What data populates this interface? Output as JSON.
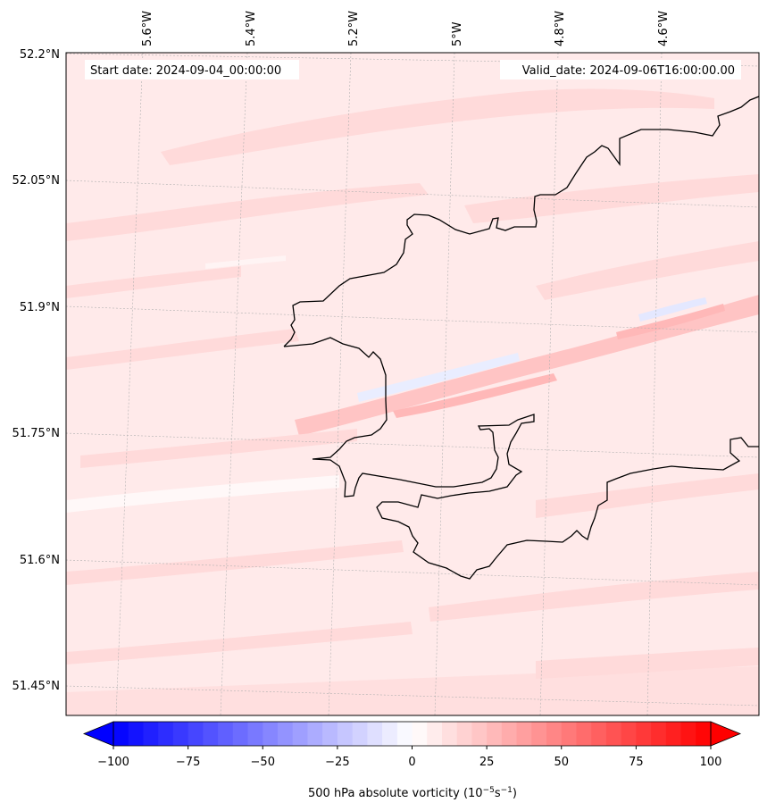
{
  "header": {
    "start_date": "Start date: 2024-09-04_00:00:00",
    "valid_date": "Valid_date: 2024-09-06T16:00:00.00"
  },
  "longitude_labels": [
    "5.6°W",
    "5.4°W",
    "5.2°W",
    "5°W",
    "4.8°W",
    "4.6°W"
  ],
  "latitude_labels": [
    "52.2°N",
    "52.05°N",
    "51.9°N",
    "51.75°N",
    "51.6°N",
    "51.45°N"
  ],
  "colorbar": {
    "label_main": "500 hPa absolute vorticity (10",
    "label_exp1": "−5",
    "label_mid": "s",
    "label_exp2": "−1",
    "label_end": ")",
    "ticks": [
      -100,
      -75,
      -50,
      -25,
      0,
      25,
      50,
      75,
      100
    ],
    "tick_labels": [
      "−100",
      "−75",
      "−50",
      "−25",
      "0",
      "25",
      "50",
      "75",
      "100"
    ],
    "min": -100,
    "max": 100,
    "levels": 40,
    "color_low": "#0000ff",
    "color_mid": "#ffffff",
    "color_high": "#ff0000"
  },
  "colors": {
    "background_field": "#ffeaea",
    "contour_light": "#ffdada",
    "contour_mid": "#ffc4c4",
    "contour_blue": "#e8ecff",
    "coastline": "#000000",
    "gridline": "#b0b0b0"
  }
}
